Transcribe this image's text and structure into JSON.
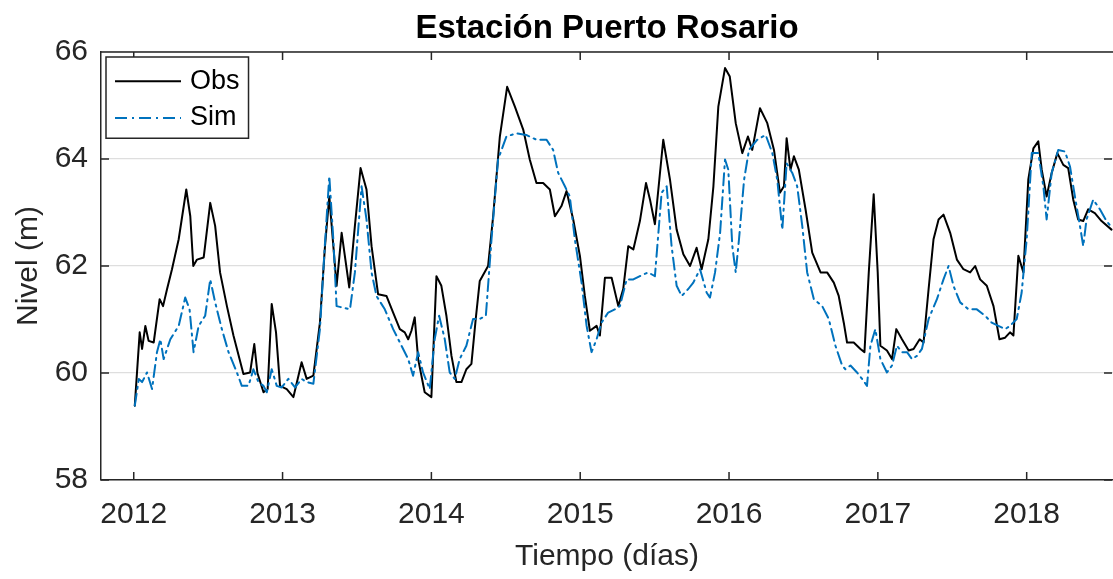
{
  "chart_data": {
    "type": "line",
    "title": "Estación Puerto Rosario",
    "xlabel": "Tiempo (días)",
    "ylabel": "Nivel (m)",
    "xlim": [
      2011.78,
      2018.58
    ],
    "xticks": [
      2012,
      2013,
      2014,
      2015,
      2016,
      2017,
      2018
    ],
    "ylim": [
      58,
      66
    ],
    "yticks": [
      58,
      60,
      62,
      64,
      66
    ],
    "grid": "y",
    "legend": "top left",
    "series": [
      {
        "name": "Obs",
        "color": "#000000",
        "line_style": "solid",
        "x": [
          2012.007,
          2012.04,
          2012.056,
          2012.078,
          2012.1,
          2012.134,
          2012.174,
          2012.197,
          2012.224,
          2012.257,
          2012.302,
          2012.353,
          2012.38,
          2012.4,
          2012.425,
          2012.47,
          2012.514,
          2012.547,
          2012.58,
          2012.626,
          2012.67,
          2012.737,
          2012.782,
          2012.81,
          2012.831,
          2012.872,
          2012.9,
          2012.927,
          2012.956,
          2012.983,
          2013.028,
          2013.073,
          2013.128,
          2013.162,
          2013.207,
          2013.251,
          2013.285,
          2013.314,
          2013.363,
          2013.397,
          2013.448,
          2013.486,
          2013.524,
          2013.564,
          2013.598,
          2013.642,
          2013.698,
          2013.743,
          2013.788,
          2013.821,
          2013.844,
          2013.866,
          2013.888,
          2013.911,
          2013.955,
          2014.0,
          2014.034,
          2014.067,
          2014.101,
          2014.135,
          2014.168,
          2014.202,
          2014.235,
          2014.269,
          2014.298,
          2014.325,
          2014.381,
          2014.415,
          2014.46,
          2014.509,
          2014.561,
          2014.617,
          2014.661,
          2014.706,
          2014.751,
          2014.796,
          2014.83,
          2014.874,
          2014.908,
          2014.953,
          2014.998,
          2015.031,
          2015.065,
          2015.11,
          2015.132,
          2015.166,
          2015.211,
          2015.256,
          2015.289,
          2015.323,
          2015.357,
          2015.401,
          2015.442,
          2015.469,
          2015.502,
          2015.558,
          2015.603,
          2015.648,
          2015.693,
          2015.738,
          2015.782,
          2015.816,
          2015.861,
          2015.895,
          2015.928,
          2015.973,
          2016.005,
          2016.045,
          2016.089,
          2016.127,
          2016.156,
          2016.208,
          2016.257,
          2016.302,
          2016.342,
          2016.369,
          2016.387,
          2016.413,
          2016.436,
          2016.469,
          2016.514,
          2016.559,
          2016.615,
          2016.659,
          2016.704,
          2016.737,
          2016.771,
          2016.793,
          2016.838,
          2016.883,
          2016.91,
          2016.939,
          2016.972,
          2016.999,
          2017.017,
          2017.061,
          2017.095,
          2017.124,
          2017.162,
          2017.207,
          2017.24,
          2017.281,
          2017.307,
          2017.341,
          2017.374,
          2017.408,
          2017.441,
          2017.486,
          2017.531,
          2017.575,
          2017.62,
          2017.654,
          2017.687,
          2017.732,
          2017.777,
          2017.817,
          2017.855,
          2017.888,
          2017.911,
          2017.944,
          2017.978,
          2018.011,
          2018.045,
          2018.078,
          2018.101,
          2018.134,
          2018.168,
          2018.206,
          2018.246,
          2018.279,
          2018.313,
          2018.346,
          2018.38,
          2018.413,
          2018.458,
          2018.503,
          2018.57
        ],
        "values": [
          59.39,
          60.76,
          60.45,
          60.88,
          60.6,
          60.57,
          61.38,
          61.25,
          61.57,
          61.94,
          62.5,
          63.43,
          62.93,
          62.0,
          62.12,
          62.16,
          63.18,
          62.75,
          61.88,
          61.25,
          60.7,
          59.98,
          60.01,
          60.54,
          60.0,
          59.64,
          59.7,
          61.29,
          60.76,
          59.76,
          59.7,
          59.55,
          60.2,
          59.89,
          59.95,
          60.94,
          62.37,
          63.3,
          61.63,
          62.62,
          61.6,
          62.75,
          63.83,
          63.43,
          62.37,
          61.47,
          61.44,
          61.13,
          60.82,
          60.76,
          60.63,
          60.79,
          61.04,
          60.26,
          59.64,
          59.55,
          61.81,
          61.63,
          61.07,
          60.32,
          59.83,
          59.83,
          60.07,
          60.17,
          61.01,
          61.72,
          62.0,
          62.93,
          64.42,
          65.35,
          64.98,
          64.55,
          63.99,
          63.55,
          63.55,
          63.43,
          62.93,
          63.12,
          63.4,
          62.87,
          62.19,
          61.44,
          60.79,
          60.88,
          60.7,
          61.78,
          61.78,
          61.25,
          61.57,
          62.37,
          62.31,
          62.84,
          63.55,
          63.24,
          62.78,
          64.36,
          63.62,
          62.68,
          62.22,
          62.0,
          62.34,
          61.94,
          62.5,
          63.49,
          64.98,
          65.7,
          65.54,
          64.67,
          64.11,
          64.42,
          64.17,
          64.95,
          64.67,
          64.17,
          63.37,
          63.49,
          64.39,
          63.8,
          64.05,
          63.8,
          63.06,
          62.25,
          61.88,
          61.88,
          61.69,
          61.44,
          60.94,
          60.57,
          60.57,
          60.45,
          60.39,
          61.88,
          63.34,
          61.88,
          60.51,
          60.42,
          60.26,
          60.82,
          60.63,
          60.42,
          60.45,
          60.63,
          60.57,
          61.57,
          62.5,
          62.87,
          62.96,
          62.62,
          62.12,
          61.94,
          61.88,
          62.0,
          61.75,
          61.63,
          61.25,
          60.63,
          60.66,
          60.76,
          60.7,
          62.19,
          61.88,
          63.62,
          64.2,
          64.33,
          63.8,
          63.3,
          63.74,
          64.11,
          63.89,
          63.83,
          63.24,
          62.87,
          62.84,
          63.06,
          62.99,
          62.84,
          62.68
        ]
      },
      {
        "name": "Sim",
        "color": "#0072bd",
        "line_style": "dashdot",
        "x": [
          2012.007,
          2012.034,
          2012.056,
          2012.089,
          2012.123,
          2012.156,
          2012.179,
          2012.201,
          2012.246,
          2012.302,
          2012.346,
          2012.375,
          2012.402,
          2012.436,
          2012.48,
          2012.514,
          2012.547,
          2012.592,
          2012.637,
          2012.693,
          2012.726,
          2012.771,
          2012.804,
          2012.838,
          2012.872,
          2012.894,
          2012.927,
          2012.961,
          2012.994,
          2013.039,
          2013.084,
          2013.128,
          2013.162,
          2013.207,
          2013.251,
          2013.281,
          2013.314,
          2013.341,
          2013.363,
          2013.408,
          2013.453,
          2013.486,
          2013.531,
          2013.564,
          2013.598,
          2013.631,
          2013.687,
          2013.743,
          2013.799,
          2013.844,
          2013.877,
          2013.911,
          2013.944,
          2013.989,
          2014.022,
          2014.052,
          2014.09,
          2014.123,
          2014.157,
          2014.19,
          2014.235,
          2014.28,
          2014.325,
          2014.366,
          2014.404,
          2014.448,
          2014.504,
          2014.57,
          2014.637,
          2014.706,
          2014.774,
          2014.818,
          2014.852,
          2014.897,
          2014.93,
          2014.964,
          2015.009,
          2015.043,
          2015.076,
          2015.11,
          2015.143,
          2015.188,
          2015.233,
          2015.267,
          2015.312,
          2015.357,
          2015.401,
          2015.457,
          2015.502,
          2015.547,
          2015.581,
          2015.614,
          2015.648,
          2015.682,
          2015.726,
          2015.76,
          2015.805,
          2015.85,
          2015.872,
          2015.906,
          2015.94,
          2015.973,
          2015.995,
          2016.022,
          2016.045,
          2016.067,
          2016.101,
          2016.134,
          2016.19,
          2016.246,
          2016.291,
          2016.324,
          2016.358,
          2016.387,
          2016.425,
          2016.458,
          2016.492,
          2016.525,
          2016.57,
          2016.626,
          2016.67,
          2016.715,
          2016.76,
          2016.782,
          2016.816,
          2016.86,
          2016.894,
          2016.927,
          2016.95,
          2016.983,
          2017.017,
          2017.061,
          2017.095,
          2017.128,
          2017.162,
          2017.196,
          2017.229,
          2017.263,
          2017.296,
          2017.341,
          2017.397,
          2017.441,
          2017.475,
          2017.508,
          2017.553,
          2017.609,
          2017.665,
          2017.721,
          2017.765,
          2017.81,
          2017.855,
          2017.888,
          2017.933,
          2017.966,
          2018.0,
          2018.034,
          2018.078,
          2018.112,
          2018.134,
          2018.168,
          2018.212,
          2018.257,
          2018.291,
          2018.324,
          2018.358,
          2018.38,
          2018.402,
          2018.447,
          2018.492,
          2018.536,
          2018.576
        ],
        "values": [
          59.39,
          59.89,
          59.83,
          60.01,
          59.7,
          60.39,
          60.63,
          60.26,
          60.63,
          60.88,
          61.41,
          61.19,
          60.39,
          60.88,
          61.07,
          61.75,
          61.32,
          60.82,
          60.39,
          60.01,
          59.76,
          59.76,
          60.07,
          59.83,
          59.76,
          59.64,
          60.07,
          59.76,
          59.73,
          59.89,
          59.73,
          59.89,
          59.83,
          59.8,
          60.82,
          62.25,
          63.68,
          62.5,
          61.25,
          61.22,
          61.19,
          61.88,
          63.49,
          62.87,
          61.88,
          61.44,
          61.19,
          60.82,
          60.51,
          60.26,
          59.95,
          60.39,
          60.01,
          59.7,
          60.63,
          61.07,
          60.63,
          60.01,
          59.89,
          60.26,
          60.51,
          61.01,
          61.01,
          61.07,
          62.5,
          63.99,
          64.42,
          64.48,
          64.45,
          64.36,
          64.36,
          64.17,
          63.74,
          63.49,
          63.3,
          62.5,
          61.69,
          60.88,
          60.39,
          60.63,
          60.94,
          61.13,
          61.19,
          61.25,
          61.75,
          61.75,
          61.81,
          61.88,
          61.81,
          63.37,
          63.49,
          62.37,
          61.63,
          61.44,
          61.57,
          61.69,
          61.94,
          61.5,
          61.41,
          61.88,
          62.62,
          63.99,
          63.8,
          62.37,
          61.88,
          62.5,
          63.61,
          64.17,
          64.36,
          64.45,
          64.11,
          63.61,
          62.68,
          63.92,
          63.74,
          63.49,
          62.75,
          61.88,
          61.38,
          61.25,
          61.01,
          60.51,
          60.14,
          60.07,
          60.14,
          60.01,
          59.89,
          59.76,
          60.51,
          60.82,
          60.26,
          60.01,
          60.14,
          60.51,
          60.39,
          60.39,
          60.26,
          60.32,
          60.45,
          61.01,
          61.38,
          61.75,
          62.0,
          61.63,
          61.32,
          61.19,
          61.19,
          61.07,
          60.94,
          60.88,
          60.82,
          60.88,
          61.01,
          61.5,
          62.5,
          64.11,
          64.11,
          63.49,
          62.87,
          63.74,
          64.17,
          64.14,
          63.86,
          63.3,
          62.75,
          62.37,
          62.87,
          63.24,
          63.06,
          62.84,
          62.71
        ]
      }
    ]
  }
}
